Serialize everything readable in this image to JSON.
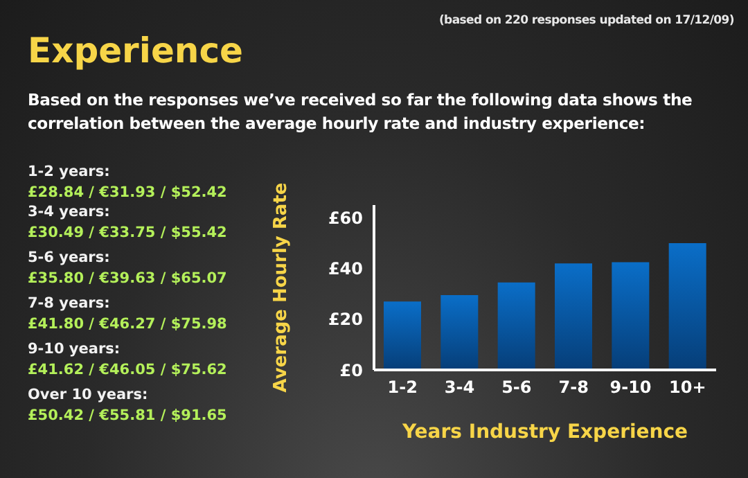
{
  "chart_data": {
    "type": "bar",
    "title": "Experience",
    "subtitle": "Based on the responses we’ve received so far the following data shows the correlation between the average hourly rate and industry experience:",
    "annotations": [
      "(based on 220 responses updated on 17/12/09)",
      "1-2 years:",
      "£28.84 / €31.93 / $52.42",
      "3-4 years:",
      "£30.49 / €33.75 / $55.42",
      "5-6 years:",
      "£35.80 / €39.63 / $65.07",
      "7-8 years:",
      "£41.80 / €46.27 / $75.98",
      "9-10 years:",
      "£41.62 / €46.05 / $75.62",
      "Over 10 years:",
      "£50.42 / €55.81 / $91.65"
    ],
    "categories": [
      "1-2",
      "3-4",
      "5-6",
      "7-8",
      "9-10",
      "10+"
    ],
    "values": [
      27,
      29.5,
      34.5,
      42,
      42.5,
      50
    ],
    "color": "#0a6ec8",
    "xlabel": "Years Industry Experience",
    "ylabel": "Average Hourly Rate",
    "ylim": [
      0,
      65
    ],
    "yticks": [
      {
        "value": 0,
        "label": "£0"
      },
      {
        "value": 20,
        "label": "£20"
      },
      {
        "value": 40,
        "label": "£40"
      },
      {
        "value": 60,
        "label": "£60"
      }
    ],
    "grid": false,
    "legend": false
  }
}
